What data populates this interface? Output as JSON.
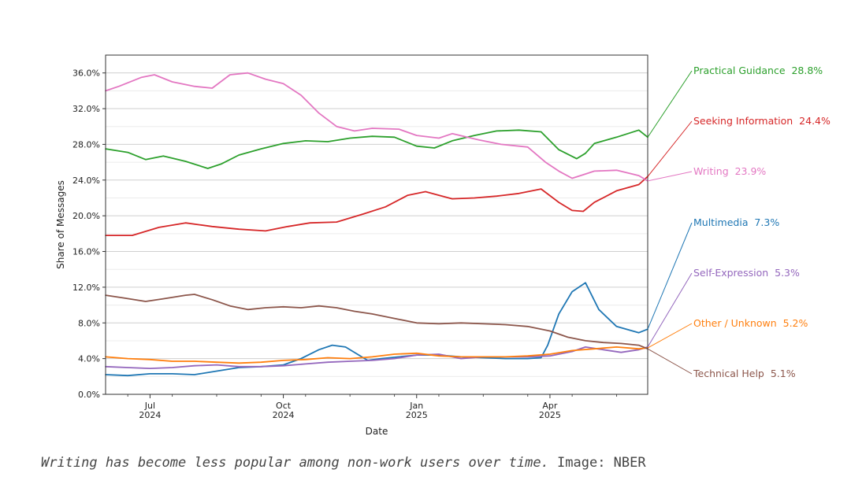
{
  "chart_data": {
    "type": "line",
    "xlabel": "Date",
    "ylabel": "Share of Messages",
    "ylim": [
      0,
      38
    ],
    "yticks": [
      0,
      4,
      8,
      12,
      16,
      20,
      24,
      28,
      32,
      36
    ],
    "ytick_labels": [
      "0.0%",
      "4.0%",
      "8.0%",
      "12.0%",
      "16.0%",
      "20.0%",
      "24.0%",
      "28.0%",
      "32.0%",
      "36.0%"
    ],
    "x_range_months": [
      0,
      12.2
    ],
    "x_range_note": "months since 2024-06-01",
    "xticks": [
      {
        "month": 1,
        "label": "Jul",
        "year": "2024"
      },
      {
        "month": 4,
        "label": "Oct",
        "year": "2024"
      },
      {
        "month": 7,
        "label": "Jan",
        "year": "2025"
      },
      {
        "month": 10,
        "label": "Apr",
        "year": "2025"
      }
    ],
    "grid": "horizontal",
    "series": [
      {
        "name": "Practical Guidance",
        "end_label": "Practical Guidance  28.8%",
        "color": "#2ca02c",
        "x": [
          0,
          0.5,
          0.9,
          1.3,
          1.8,
          2.3,
          2.6,
          3.0,
          3.5,
          4.0,
          4.5,
          5.0,
          5.5,
          6.0,
          6.5,
          7.0,
          7.4,
          7.8,
          8.3,
          8.8,
          9.3,
          9.8,
          10.2,
          10.6,
          10.8,
          11.0,
          11.5,
          12.0,
          12.2
        ],
        "y": [
          27.5,
          27.1,
          26.3,
          26.7,
          26.1,
          25.3,
          25.8,
          26.8,
          27.5,
          28.1,
          28.4,
          28.3,
          28.7,
          28.9,
          28.8,
          27.8,
          27.6,
          28.4,
          29.0,
          29.5,
          29.6,
          29.4,
          27.4,
          26.4,
          27.0,
          28.1,
          28.8,
          29.6,
          28.8
        ]
      },
      {
        "name": "Seeking Information",
        "end_label": "Seeking Information  24.4%",
        "color": "#d62728",
        "x": [
          0,
          0.6,
          1.2,
          1.8,
          2.4,
          3.0,
          3.6,
          4.1,
          4.6,
          5.2,
          5.8,
          6.3,
          6.8,
          7.2,
          7.5,
          7.8,
          8.3,
          8.8,
          9.3,
          9.8,
          10.2,
          10.5,
          10.75,
          11.0,
          11.5,
          12.0,
          12.2
        ],
        "y": [
          17.8,
          17.8,
          18.7,
          19.2,
          18.8,
          18.5,
          18.3,
          18.8,
          19.2,
          19.3,
          20.2,
          21.0,
          22.3,
          22.7,
          22.3,
          21.9,
          22.0,
          22.2,
          22.5,
          23.0,
          21.5,
          20.6,
          20.5,
          21.5,
          22.8,
          23.5,
          24.4
        ]
      },
      {
        "name": "Writing",
        "end_label": "Writing  23.9%",
        "color": "#e377c2",
        "x": [
          0,
          0.3,
          0.8,
          1.1,
          1.5,
          2.0,
          2.4,
          2.8,
          3.2,
          3.6,
          4.0,
          4.4,
          4.8,
          5.2,
          5.6,
          6.0,
          6.6,
          7.0,
          7.5,
          7.8,
          8.4,
          8.9,
          9.5,
          9.9,
          10.2,
          10.5,
          10.75,
          11.0,
          11.5,
          12.0,
          12.2
        ],
        "y": [
          34.0,
          34.5,
          35.5,
          35.8,
          35.0,
          34.5,
          34.3,
          35.8,
          36.0,
          35.3,
          34.8,
          33.5,
          31.5,
          30.0,
          29.5,
          29.8,
          29.7,
          29.0,
          28.7,
          29.2,
          28.5,
          28.0,
          27.7,
          26.0,
          25.0,
          24.2,
          24.6,
          25.0,
          25.1,
          24.5,
          23.9
        ]
      },
      {
        "name": "Multimedia",
        "end_label": "Multimedia  7.3%",
        "color": "#1f77b4",
        "x": [
          0,
          0.5,
          1.0,
          1.5,
          2.0,
          2.5,
          3.0,
          3.5,
          4.0,
          4.4,
          4.8,
          5.1,
          5.4,
          5.7,
          5.9,
          6.2,
          6.6,
          7.0,
          7.5,
          8.0,
          8.5,
          9.0,
          9.5,
          9.8,
          9.95,
          10.2,
          10.5,
          10.8,
          11.1,
          11.5,
          12.0,
          12.2
        ],
        "y": [
          2.2,
          2.1,
          2.3,
          2.3,
          2.2,
          2.6,
          3.0,
          3.1,
          3.3,
          4.0,
          5.0,
          5.5,
          5.3,
          4.4,
          3.8,
          4.0,
          4.2,
          4.4,
          4.4,
          4.2,
          4.1,
          4.0,
          4.0,
          4.1,
          5.5,
          9.0,
          11.5,
          12.5,
          9.5,
          7.6,
          6.9,
          7.3
        ]
      },
      {
        "name": "Self-Expression",
        "end_label": "Self-Expression  5.3%",
        "color": "#9467bd",
        "x": [
          0,
          0.5,
          1.0,
          1.5,
          2.0,
          2.5,
          3.0,
          3.5,
          4.0,
          4.5,
          5.0,
          5.5,
          6.0,
          6.5,
          7.0,
          7.5,
          8.0,
          8.5,
          9.0,
          9.5,
          10.0,
          10.5,
          10.8,
          11.2,
          11.6,
          12.0,
          12.2
        ],
        "y": [
          3.1,
          3.0,
          2.9,
          3.0,
          3.2,
          3.3,
          3.1,
          3.1,
          3.2,
          3.4,
          3.6,
          3.7,
          3.8,
          4.0,
          4.4,
          4.5,
          4.0,
          4.2,
          4.2,
          4.2,
          4.3,
          4.8,
          5.3,
          5.0,
          4.7,
          5.0,
          5.3
        ]
      },
      {
        "name": "Other / Unknown",
        "end_label": "Other / Unknown  5.2%",
        "color": "#ff7f0e",
        "x": [
          0,
          0.5,
          1.0,
          1.5,
          2.0,
          2.5,
          3.0,
          3.5,
          4.0,
          4.5,
          5.0,
          5.5,
          6.0,
          6.5,
          7.0,
          7.5,
          8.0,
          8.5,
          9.0,
          9.5,
          10.0,
          10.5,
          11.0,
          11.5,
          12.0,
          12.2
        ],
        "y": [
          4.2,
          4.0,
          3.9,
          3.7,
          3.7,
          3.6,
          3.5,
          3.6,
          3.8,
          3.9,
          4.1,
          4.0,
          4.2,
          4.5,
          4.6,
          4.3,
          4.2,
          4.2,
          4.2,
          4.3,
          4.5,
          4.9,
          5.1,
          5.3,
          5.1,
          5.2
        ]
      },
      {
        "name": "Technical Help",
        "end_label": "Technical Help  5.1%",
        "color": "#8c564b",
        "x": [
          0,
          0.4,
          0.9,
          1.3,
          1.8,
          2.0,
          2.4,
          2.8,
          3.2,
          3.6,
          4.0,
          4.4,
          4.8,
          5.2,
          5.6,
          6.0,
          6.5,
          7.0,
          7.5,
          8.0,
          8.5,
          9.0,
          9.5,
          10.0,
          10.4,
          10.8,
          11.2,
          11.6,
          12.0,
          12.2
        ],
        "y": [
          11.1,
          10.8,
          10.4,
          10.7,
          11.1,
          11.2,
          10.6,
          9.9,
          9.5,
          9.7,
          9.8,
          9.7,
          9.9,
          9.7,
          9.3,
          9.0,
          8.5,
          8.0,
          7.9,
          8.0,
          7.9,
          7.8,
          7.6,
          7.1,
          6.4,
          6.0,
          5.8,
          5.7,
          5.5,
          5.1
        ]
      }
    ]
  },
  "caption": {
    "italic_text": "Writing has become less popular among non-work users over time.",
    "plain_text": " Image: NBER"
  }
}
